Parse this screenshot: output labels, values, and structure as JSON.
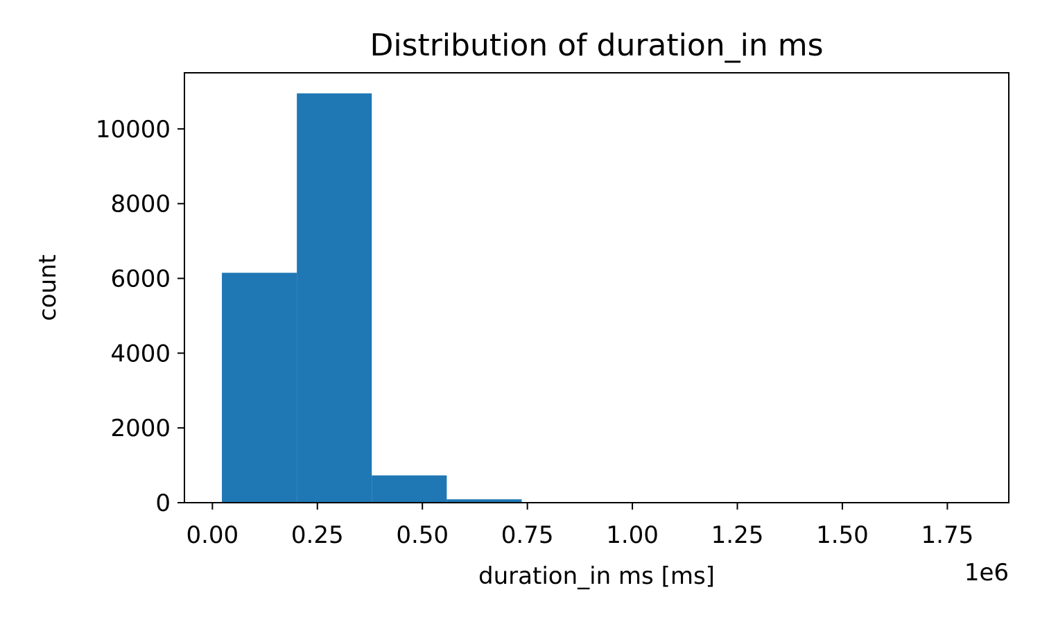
{
  "chart_data": {
    "type": "bar",
    "title": "Distribution of duration_in ms",
    "xlabel": "duration_in ms [ms]",
    "ylabel": "count",
    "x_offset_label": "1e6",
    "bins": [
      {
        "start": 0.0226,
        "end": 0.2011,
        "count": 6150
      },
      {
        "start": 0.2011,
        "end": 0.3795,
        "count": 10950
      },
      {
        "start": 0.3795,
        "end": 0.558,
        "count": 730
      },
      {
        "start": 0.558,
        "end": 0.7364,
        "count": 90
      },
      {
        "start": 0.7364,
        "end": 0.9149,
        "count": 12
      },
      {
        "start": 0.9149,
        "end": 1.0933,
        "count": 4
      },
      {
        "start": 1.0933,
        "end": 1.2718,
        "count": 2
      },
      {
        "start": 1.2718,
        "end": 1.4502,
        "count": 1
      },
      {
        "start": 1.4502,
        "end": 1.6287,
        "count": 0
      },
      {
        "start": 1.6287,
        "end": 1.8071,
        "count": 1
      }
    ],
    "xlim": [
      -0.0666,
      1.8963
    ],
    "ylim": [
      0,
      11500
    ],
    "x_ticks": [
      0.0,
      0.25,
      0.5,
      0.75,
      1.0,
      1.25,
      1.5,
      1.75
    ],
    "x_tick_labels": [
      "0.00",
      "0.25",
      "0.50",
      "0.75",
      "1.00",
      "1.25",
      "1.50",
      "1.75"
    ],
    "y_ticks": [
      0,
      2000,
      4000,
      6000,
      8000,
      10000
    ],
    "y_tick_labels": [
      "0",
      "2000",
      "4000",
      "6000",
      "8000",
      "10000"
    ],
    "bar_color": "#1f77b4",
    "grid": false,
    "legend": "none"
  }
}
